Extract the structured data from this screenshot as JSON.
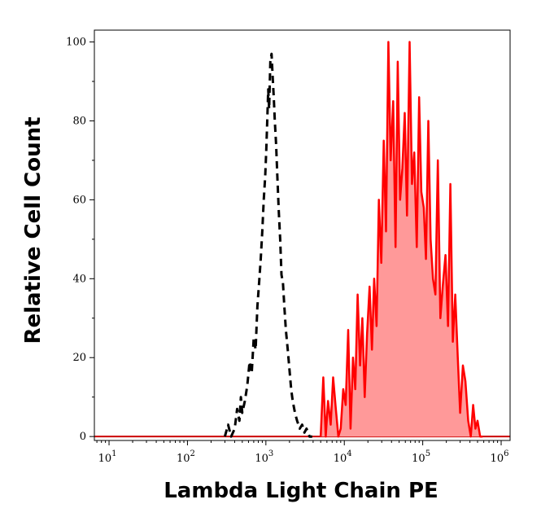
{
  "chart_data": {
    "type": "area",
    "title": "",
    "xlabel": "Lambda Light Chain PE",
    "ylabel": "Relative Cell Count",
    "x_scale": "log",
    "xlim": [
      6.5,
      1300000
    ],
    "ylim": [
      -1,
      103
    ],
    "x_ticks": [
      {
        "value": 10,
        "base": "10",
        "exp": "1"
      },
      {
        "value": 100,
        "base": "10",
        "exp": "2"
      },
      {
        "value": 1000,
        "base": "10",
        "exp": "3"
      },
      {
        "value": 10000,
        "base": "10",
        "exp": "4"
      },
      {
        "value": 100000,
        "base": "10",
        "exp": "5"
      },
      {
        "value": 1000000,
        "base": "10",
        "exp": "6"
      }
    ],
    "y_ticks": [
      0,
      20,
      40,
      60,
      80,
      100
    ],
    "grid": false,
    "legend": "none",
    "series": [
      {
        "style": "dashed",
        "color": "#000000",
        "fill": "none",
        "x": [
          300,
          330,
          360,
          400,
          430,
          460,
          480,
          500,
          540,
          580,
          620,
          660,
          700,
          740,
          780,
          820,
          860,
          900,
          940,
          980,
          1010,
          1040,
          1070,
          1100,
          1140,
          1180,
          1220,
          1260,
          1300,
          1350,
          1400,
          1460,
          1520,
          1580,
          1650,
          1720,
          1800,
          1900,
          2000,
          2100,
          2200,
          2350,
          2500,
          2700,
          2900,
          3100,
          3300,
          3600,
          3900
        ],
        "y": [
          0,
          3,
          0,
          2,
          7,
          4,
          10,
          6,
          9,
          13,
          19,
          16,
          25,
          22,
          33,
          39,
          45,
          52,
          60,
          66,
          72,
          80,
          88,
          83,
          95,
          97,
          91,
          86,
          80,
          74,
          66,
          57,
          50,
          41,
          39,
          33,
          27,
          22,
          17,
          12,
          9,
          6,
          4,
          2,
          3,
          1,
          2,
          0,
          0
        ]
      },
      {
        "style": "solid",
        "color": "#ff0000",
        "fill": "#ff9999",
        "x": [
          5000,
          5400,
          5800,
          6200,
          6700,
          7200,
          7800,
          8400,
          9000,
          9700,
          10400,
          11200,
          12000,
          12900,
          13800,
          14800,
          15900,
          17000,
          18200,
          19500,
          21000,
          22500,
          24000,
          25800,
          27600,
          29600,
          31800,
          34000,
          36500,
          39000,
          42000,
          45000,
          48000,
          51500,
          55000,
          59000,
          63000,
          68000,
          73000,
          78000,
          84000,
          90000,
          96000,
          103000,
          110000,
          118000,
          126000,
          135000,
          145000,
          156000,
          168000,
          180000,
          195000,
          210000,
          225000,
          242000,
          260000,
          280000,
          300000,
          325000,
          350000,
          380000,
          410000,
          440000,
          470000,
          500000,
          540000,
          580000
        ],
        "y": [
          0,
          15,
          0,
          9,
          3,
          15,
          7,
          0,
          2,
          12,
          8,
          27,
          2,
          20,
          12,
          36,
          18,
          30,
          10,
          26,
          38,
          22,
          40,
          28,
          60,
          44,
          75,
          52,
          100,
          70,
          85,
          48,
          95,
          60,
          68,
          82,
          56,
          100,
          64,
          72,
          48,
          86,
          62,
          58,
          45,
          80,
          50,
          40,
          36,
          70,
          30,
          38,
          46,
          28,
          64,
          24,
          36,
          20,
          6,
          18,
          14,
          4,
          0,
          8,
          2,
          4,
          0,
          0
        ]
      }
    ]
  }
}
